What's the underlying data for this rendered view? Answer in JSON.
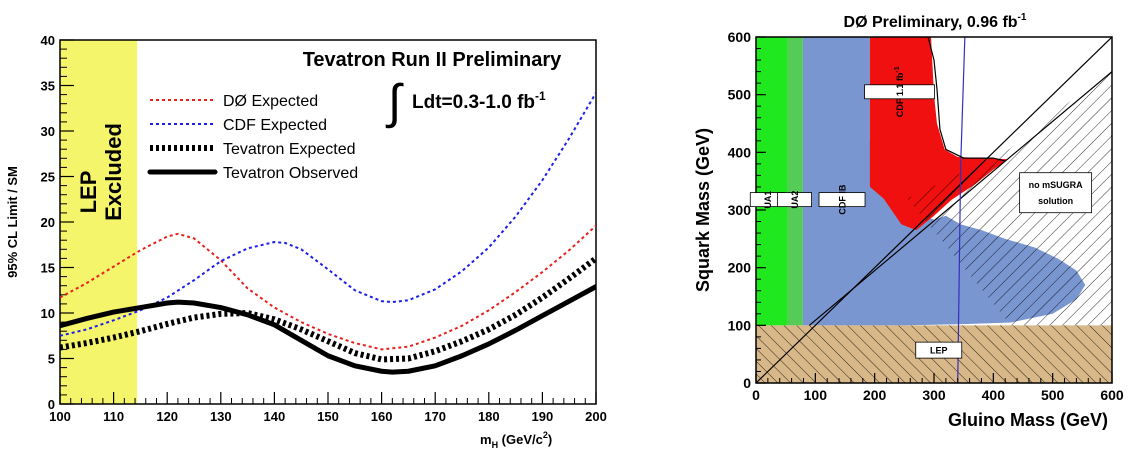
{
  "chart_data": [
    {
      "type": "line",
      "title": "Tevatron Run II Preliminary",
      "luminosity_label": "Ldt=0.3-1.0 fb",
      "luminosity_sup": "-1",
      "integral_symbol": "∫",
      "xlabel_main": "m",
      "xlabel_sub": "H",
      "xlabel_units_pre": " (GeV/c",
      "xlabel_units_sup": "2",
      "xlabel_units_post": ")",
      "ylabel": "95% CL Limit / SM",
      "xlim": [
        100,
        200
      ],
      "ylim": [
        0,
        40
      ],
      "xticks": [
        "100",
        "110",
        "120",
        "130",
        "140",
        "150",
        "160",
        "170",
        "180",
        "190",
        "200"
      ],
      "yticks": [
        "0",
        "5",
        "10",
        "15",
        "20",
        "25",
        "30",
        "35",
        "40"
      ],
      "excluded_region": {
        "label_line1": "LEP",
        "label_line2": "Excluded",
        "x_range": [
          100,
          114.4
        ],
        "color": "#f5f56b"
      },
      "series": [
        {
          "name": "DØ Expected",
          "color": "#e8201c",
          "style": "dotted",
          "x": [
            100,
            105,
            110,
            115,
            120,
            122,
            125,
            130,
            135,
            140,
            145,
            150,
            155,
            160,
            165,
            170,
            175,
            180,
            185,
            190,
            195,
            200
          ],
          "y": [
            11.7,
            13.3,
            15.1,
            16.9,
            18.4,
            18.7,
            18.2,
            15.8,
            12.7,
            10.6,
            9.0,
            7.7,
            6.7,
            6.0,
            6.3,
            7.3,
            8.6,
            10.3,
            12.3,
            14.5,
            16.9,
            19.6
          ]
        },
        {
          "name": "CDF Expected",
          "color": "#1c20e8",
          "style": "dotted",
          "x": [
            100,
            105,
            110,
            115,
            120,
            125,
            130,
            135,
            140,
            142,
            145,
            150,
            155,
            160,
            162,
            165,
            170,
            175,
            180,
            185,
            190,
            195,
            200
          ],
          "y": [
            7.5,
            8.2,
            9.2,
            10.3,
            11.7,
            13.6,
            15.7,
            17.1,
            17.8,
            17.7,
            17.0,
            14.8,
            12.5,
            11.3,
            11.2,
            11.4,
            12.6,
            14.6,
            17.2,
            20.6,
            24.6,
            29.2,
            34.2
          ]
        },
        {
          "name": "Tevatron Expected",
          "color": "#000000",
          "style": "thick-dotted",
          "x": [
            100,
            105,
            110,
            115,
            120,
            125,
            130,
            135,
            140,
            145,
            150,
            155,
            160,
            165,
            170,
            175,
            180,
            185,
            190,
            195,
            200
          ],
          "y": [
            6.2,
            6.7,
            7.3,
            8.0,
            8.8,
            9.5,
            9.9,
            10.0,
            9.3,
            8.2,
            6.9,
            5.6,
            4.9,
            5.0,
            5.8,
            6.9,
            8.2,
            9.8,
            11.7,
            13.8,
            16.0
          ]
        },
        {
          "name": "Tevatron Observed",
          "color": "#000000",
          "style": "solid-thick",
          "x": [
            100,
            105,
            110,
            115,
            120,
            122,
            125,
            130,
            135,
            140,
            145,
            150,
            155,
            160,
            162,
            165,
            170,
            175,
            180,
            185,
            190,
            195,
            200
          ],
          "y": [
            8.6,
            9.4,
            10.1,
            10.6,
            11.1,
            11.2,
            11.1,
            10.6,
            9.8,
            8.7,
            7.0,
            5.3,
            4.2,
            3.6,
            3.5,
            3.6,
            4.2,
            5.3,
            6.6,
            8.1,
            9.7,
            11.3,
            12.9
          ]
        }
      ]
    },
    {
      "type": "area",
      "title": "DØ Preliminary, 0.96 fb",
      "title_sup": "-1",
      "xlabel": "Gluino Mass (GeV)",
      "ylabel": "Squark Mass (GeV)",
      "xlim": [
        0,
        600
      ],
      "ylim": [
        0,
        600
      ],
      "xticks": [
        "0",
        "100",
        "200",
        "300",
        "400",
        "500",
        "600"
      ],
      "yticks": [
        "0",
        "100",
        "200",
        "300",
        "400",
        "500",
        "600"
      ],
      "regions": [
        {
          "name": "UA1",
          "color": "#1fe81f",
          "polygon": [
            [
              0,
              100
            ],
            [
              0,
              600
            ],
            [
              53,
              600
            ],
            [
              53,
              100
            ]
          ]
        },
        {
          "name": "UA2",
          "color": "#55cc55",
          "polygon": [
            [
              53,
              100
            ],
            [
              53,
              600
            ],
            [
              79,
              600
            ],
            [
              79,
              100
            ]
          ]
        },
        {
          "name": "CDF IB",
          "color": "#7a96d0",
          "polygon": [
            [
              79,
              100
            ],
            [
              79,
              600
            ],
            [
              192,
              600
            ],
            [
              192,
              420
            ],
            [
              235,
              330
            ],
            [
              275,
              295
            ],
            [
              300,
              283
            ],
            [
              320,
              290
            ],
            [
              345,
              275
            ],
            [
              380,
              265
            ],
            [
              420,
              250
            ],
            [
              470,
              235
            ],
            [
              510,
              215
            ],
            [
              540,
              195
            ],
            [
              555,
              170
            ],
            [
              540,
              145
            ],
            [
              500,
              120
            ],
            [
              430,
              105
            ],
            [
              350,
              102
            ],
            [
              250,
              100
            ]
          ]
        },
        {
          "name": "CDF 1.1 fb-1 excluded",
          "color": "#f01010",
          "polygon": [
            [
              192,
              600
            ],
            [
              295,
              600
            ],
            [
              300,
              500
            ],
            [
              305,
              450
            ],
            [
              318,
              405
            ],
            [
              340,
              392
            ],
            [
              385,
              390
            ],
            [
              425,
              388
            ],
            [
              400,
              370
            ],
            [
              370,
              345
            ],
            [
              330,
              318
            ],
            [
              300,
              290
            ],
            [
              270,
              265
            ],
            [
              245,
              275
            ],
            [
              215,
              320
            ],
            [
              192,
              340
            ]
          ]
        },
        {
          "name": "LEP",
          "color": "#d8b888",
          "polygon": [
            [
              0,
              0
            ],
            [
              600,
              0
            ],
            [
              600,
              100
            ],
            [
              0,
              100
            ]
          ]
        },
        {
          "name": "no mSUGRA solution",
          "hatch": true,
          "polygon": [
            [
              255,
              320
            ],
            [
              420,
              400
            ],
            [
              600,
              545
            ],
            [
              600,
              100
            ],
            [
              430,
              100
            ]
          ]
        }
      ],
      "labels": {
        "ua1": "UA1",
        "ua2": "UA2",
        "cdf_ib": "CDF IB",
        "cdf_11_main": "CDF 1.1 fb",
        "cdf_11_sup": "-1",
        "lep": "LEP",
        "no_msugra_line1": "no mSUGRA",
        "no_msugra_line2": "solution"
      },
      "lines": [
        {
          "name": "squark=gluino diagonal",
          "points": [
            [
              0,
              0
            ],
            [
              600,
              600
            ]
          ]
        },
        {
          "name": "lower diagonal",
          "points": [
            [
              90,
              100
            ],
            [
              600,
              540
            ]
          ]
        },
        {
          "name": "blue line",
          "color": "#3030c0",
          "points": [
            [
              340,
              0
            ],
            [
              345,
              380
            ],
            [
              352,
              600
            ]
          ]
        },
        {
          "name": "D0 observed",
          "color": "#000000",
          "points": [
            [
              290,
              600
            ],
            [
              300,
              560
            ],
            [
              305,
              510
            ],
            [
              310,
              440
            ],
            [
              320,
              405
            ],
            [
              350,
              390
            ],
            [
              400,
              390
            ],
            [
              420,
              385
            ]
          ]
        }
      ]
    }
  ]
}
